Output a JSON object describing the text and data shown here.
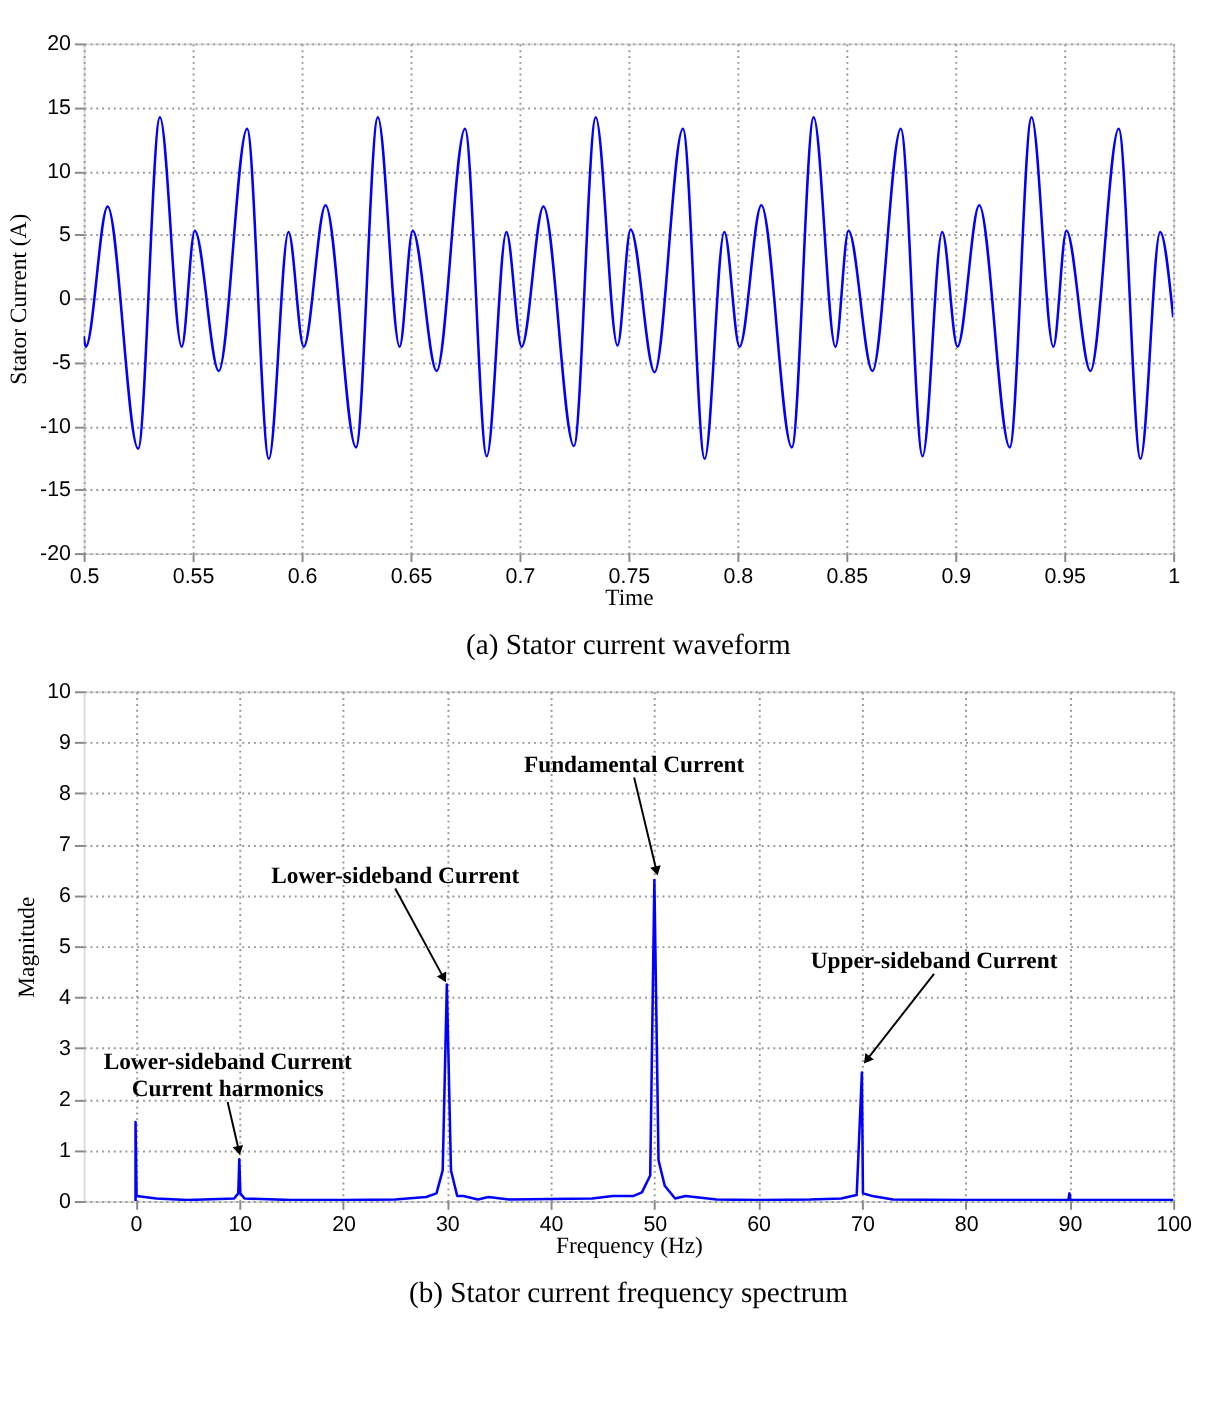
{
  "chart_data": [
    {
      "type": "line",
      "title": "(a) Stator current waveform",
      "xlabel": "Time",
      "ylabel": "Stator Current (A)",
      "x": [
        0.5,
        0.501,
        0.511,
        0.525,
        0.535,
        0.545,
        0.551,
        0.562,
        0.575,
        0.585,
        0.594,
        0.601,
        0.611,
        0.625,
        0.635,
        0.645,
        0.651,
        0.662,
        0.675,
        0.685,
        0.694,
        0.701,
        0.711,
        0.725,
        0.735,
        0.745,
        0.751,
        0.762,
        0.775,
        0.785,
        0.794,
        0.801,
        0.811,
        0.825,
        0.835,
        0.845,
        0.851,
        0.862,
        0.875,
        0.885,
        0.894,
        0.901,
        0.911,
        0.925,
        0.935,
        0.945,
        0.951,
        0.962,
        0.975,
        0.985,
        0.994,
        1.0
      ],
      "series": [
        {
          "color": "#0000ff",
          "values": [
            -3,
            -3.8,
            7.2,
            -11.8,
            14.2,
            -3.8,
            5.3,
            -5.7,
            13.3,
            -12.6,
            5.2,
            -3.8,
            7.3,
            -11.7,
            14.2,
            -3.8,
            5.3,
            -5.7,
            13.3,
            -12.4,
            5.2,
            -3.8,
            7.2,
            -11.6,
            14.2,
            -3.7,
            5.4,
            -5.8,
            13.3,
            -12.6,
            5.2,
            -3.8,
            7.3,
            -11.7,
            14.2,
            -3.8,
            5.3,
            -5.7,
            13.3,
            -12.4,
            5.2,
            -3.8,
            7.3,
            -11.7,
            14.2,
            -3.8,
            5.3,
            -5.7,
            13.3,
            -12.6,
            5.2,
            -1.5
          ]
        }
      ],
      "xlim": [
        0.5,
        1.0
      ],
      "xticks": [
        0.5,
        0.55,
        0.6,
        0.65,
        0.7,
        0.75,
        0.8,
        0.85,
        0.9,
        0.95,
        1
      ],
      "ylim": [
        -20,
        20
      ],
      "yticks": [
        -20,
        -15,
        -10,
        -5,
        0,
        5,
        10,
        15,
        20
      ],
      "grid": true
    },
    {
      "type": "line",
      "title": "(b) Stator current frequency spectrum",
      "xlabel": "Frequency (Hz)",
      "ylabel": "Magnitude",
      "x": [
        0,
        0,
        0.1,
        2,
        5,
        9.5,
        9.9,
        10,
        10.1,
        10.5,
        15,
        20,
        25,
        28,
        29,
        29.6,
        30,
        30.4,
        31,
        31.6,
        33,
        34,
        36,
        40,
        44,
        46,
        48,
        48.8,
        49.6,
        50,
        50.4,
        51,
        52,
        53,
        56,
        60,
        65,
        68,
        69.5,
        70,
        70.1,
        71,
        73,
        80,
        89.9,
        90,
        90.1,
        100
      ],
      "series": [
        {
          "color": "#0000ff",
          "values": [
            0,
            1.55,
            0.1,
            0.05,
            0.02,
            0.05,
            0.15,
            0.82,
            0.15,
            0.05,
            0.02,
            0.02,
            0.03,
            0.08,
            0.15,
            0.6,
            4.25,
            0.6,
            0.1,
            0.1,
            0.03,
            0.08,
            0.03,
            0.04,
            0.05,
            0.1,
            0.1,
            0.17,
            0.5,
            6.3,
            0.8,
            0.3,
            0.05,
            0.1,
            0.03,
            0.02,
            0.03,
            0.05,
            0.12,
            2.52,
            0.15,
            0.1,
            0.03,
            0.02,
            0.02,
            0.15,
            0.02,
            0.02
          ]
        }
      ],
      "xlim": [
        -5,
        100
      ],
      "xticks": [
        0,
        10,
        20,
        30,
        40,
        50,
        60,
        70,
        80,
        90,
        100
      ],
      "ylim": [
        0,
        10
      ],
      "yticks": [
        0,
        1,
        2,
        3,
        4,
        5,
        6,
        7,
        8,
        9,
        10
      ],
      "grid": true,
      "annotations": [
        {
          "text": "Lower-sideband Current\nCurrent harmonics",
          "x": 10,
          "y": 0.95
        },
        {
          "text": "Lower-sideband Current",
          "x": 29.9,
          "y": 4.3
        },
        {
          "text": "Fundamental Current",
          "x": 50.3,
          "y": 6.4
        },
        {
          "text": "Upper-sideband Current",
          "x": 70.2,
          "y": 2.7
        }
      ]
    }
  ]
}
